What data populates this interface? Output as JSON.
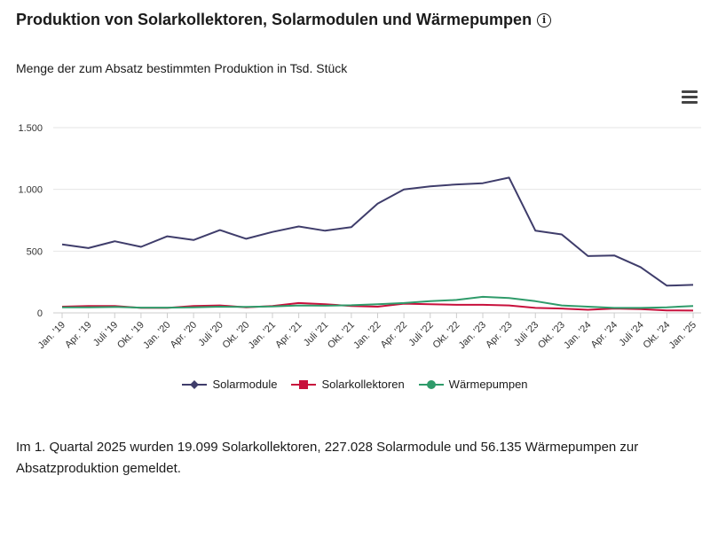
{
  "header": {
    "title": "Produktion von Solarkollektoren, Solarmodulen und Wärmepumpen",
    "info_icon": "info-icon",
    "subtitle": "Menge der zum Absatz bestimmten Produktion in Tsd. Stück"
  },
  "menu": {
    "icon": "hamburger-menu-icon"
  },
  "chart_data": {
    "type": "line",
    "title": "Produktion von Solarkollektoren, Solarmodulen und Wärmepumpen",
    "subtitle": "Menge der zum Absatz bestimmten Produktion in Tsd. Stück",
    "xlabel": "",
    "ylabel": "",
    "ylim": [
      0,
      1500
    ],
    "yticks": [
      0,
      500,
      1000,
      1500
    ],
    "ytick_labels": [
      "0",
      "500",
      "1.000",
      "1.500"
    ],
    "grid": true,
    "legend_position": "bottom-center",
    "categories": [
      "Jan. '19",
      "Apr. '19",
      "Juli '19",
      "Okt. '19",
      "Jan. '20",
      "Apr. '20",
      "Juli '20",
      "Okt. '20",
      "Jan. '21",
      "Apr. '21",
      "Juli '21",
      "Okt. '21",
      "Jan. '22",
      "Apr. '22",
      "Juli '22",
      "Okt. '22",
      "Jan. '23",
      "Apr. '23",
      "Juli '23",
      "Okt. '23",
      "Jan. '24",
      "Apr. '24",
      "Juli '24",
      "Okt. '24",
      "Jan. '25"
    ],
    "series": [
      {
        "name": "Solarmodule",
        "color": "#3f3d6b",
        "marker": "diamond",
        "values": [
          555,
          525,
          580,
          535,
          620,
          590,
          670,
          600,
          655,
          700,
          665,
          695,
          885,
          1000,
          1025,
          1040,
          1050,
          1095,
          665,
          635,
          460,
          465,
          370,
          220,
          227
        ]
      },
      {
        "name": "Solarkollektoren",
        "color": "#c8103c",
        "marker": "square",
        "values": [
          50,
          55,
          55,
          40,
          40,
          55,
          60,
          45,
          55,
          80,
          70,
          55,
          50,
          75,
          70,
          65,
          65,
          60,
          40,
          35,
          25,
          35,
          30,
          20,
          19
        ]
      },
      {
        "name": "Wärmepumpen",
        "color": "#2f9b6a",
        "marker": "circle",
        "values": [
          45,
          45,
          48,
          42,
          42,
          45,
          50,
          48,
          52,
          60,
          58,
          62,
          70,
          80,
          95,
          105,
          130,
          120,
          95,
          60,
          50,
          40,
          40,
          45,
          56
        ]
      }
    ]
  },
  "footnote": "Im 1. Quartal 2025 wurden 19.099 Solarkollektoren, 227.028 Solarmodule und 56.135 Wärmepumpen zur Absatzproduktion gemeldet."
}
